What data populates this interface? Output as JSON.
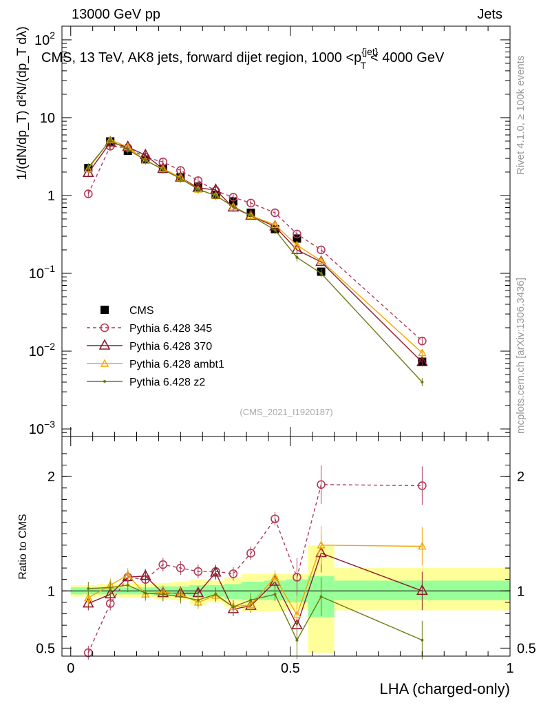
{
  "header": {
    "left": "13000 GeV pp",
    "right": "Jets"
  },
  "side_labels": {
    "rivet": "Rivet 4.1.0, ≥ 100k events",
    "mcplots": "mcplots.cern.ch [arXiv:1306.3436]"
  },
  "watermark": "(CMS_2021_I1920187)",
  "colors": {
    "cms": "#000000",
    "p345": "#b03a5a",
    "p370": "#8b1a2b",
    "ambt1": "#f5a500",
    "z2": "#6b7a10",
    "band_inner": "#99ff99",
    "band_outer": "#ffff99"
  },
  "chart_data": [
    {
      "type": "scatter",
      "title": "CMS, 13 TeV, AK8 jets, forward dijet region, 1000 <p_T^{jet}< 4000 GeV",
      "ylabel": "1/(dN/dp_T) d²N/(dp_T dλ)",
      "yscale": "log",
      "ylim": [
        0.0008,
        150
      ],
      "xlim": [
        -0.02,
        1.0
      ],
      "yticks": [
        {
          "v": 0.001,
          "label": "10^-3"
        },
        {
          "v": 0.01,
          "label": "10^-2"
        },
        {
          "v": 0.1,
          "label": "10^-1"
        },
        {
          "v": 1,
          "label": "1"
        },
        {
          "v": 10,
          "label": "10"
        },
        {
          "v": 100,
          "label": "10^2"
        }
      ],
      "x": [
        0.04,
        0.09,
        0.13,
        0.17,
        0.21,
        0.25,
        0.29,
        0.33,
        0.37,
        0.41,
        0.465,
        0.515,
        0.57,
        0.8
      ],
      "series": [
        {
          "name": "CMS",
          "values": [
            2.25,
            4.95,
            3.75,
            2.9,
            2.2,
            1.72,
            1.3,
            1.02,
            0.84,
            0.6,
            0.37,
            0.28,
            0.105,
            0.0073
          ]
        },
        {
          "name": "Pythia 6.428 345",
          "values": [
            1.05,
            4.3,
            4.1,
            3.1,
            2.7,
            2.1,
            1.55,
            1.15,
            0.95,
            0.8,
            0.6,
            0.32,
            0.2,
            0.0135
          ]
        },
        {
          "name": "Pythia 6.428 370",
          "values": [
            1.95,
            4.8,
            4.2,
            3.3,
            2.2,
            1.7,
            1.25,
            1.18,
            0.7,
            0.55,
            0.4,
            0.2,
            0.14,
            0.0072
          ]
        },
        {
          "name": "Pythia 6.428 ambt1",
          "values": [
            2.2,
            5.2,
            4.2,
            2.8,
            2.2,
            1.7,
            1.2,
            1.0,
            0.72,
            0.55,
            0.42,
            0.23,
            0.145,
            0.0095
          ]
        },
        {
          "name": "Pythia 6.428 z2",
          "values": [
            2.3,
            5.1,
            3.9,
            2.85,
            2.15,
            1.65,
            1.2,
            1.0,
            0.72,
            0.55,
            0.36,
            0.16,
            0.1,
            0.004
          ]
        }
      ]
    },
    {
      "type": "line",
      "ylabel": "Ratio to CMS",
      "xlabel": "LHA (charged-only)",
      "ylim": [
        0.43,
        2.35
      ],
      "xlim": [
        -0.02,
        1.0
      ],
      "xticks": [
        {
          "v": 0,
          "label": "0"
        },
        {
          "v": 0.5,
          "label": "0.5"
        },
        {
          "v": 1,
          "label": "1"
        }
      ],
      "yticks": [
        {
          "v": 0.5,
          "label": "0.5"
        },
        {
          "v": 1,
          "label": "1"
        },
        {
          "v": 2,
          "label": "2"
        }
      ],
      "x": [
        0.04,
        0.09,
        0.13,
        0.17,
        0.21,
        0.25,
        0.29,
        0.33,
        0.37,
        0.41,
        0.465,
        0.515,
        0.57,
        0.8
      ],
      "series": [
        {
          "name": "Pythia 6.428 345",
          "values": [
            0.46,
            0.89,
            1.12,
            1.1,
            1.23,
            1.2,
            1.17,
            1.17,
            1.15,
            1.33,
            1.63,
            1.12,
            1.93,
            1.92
          ]
        },
        {
          "name": "Pythia 6.428 370",
          "values": [
            0.89,
            0.97,
            1.12,
            1.13,
            0.98,
            0.98,
            0.98,
            1.16,
            0.84,
            0.87,
            1.08,
            0.7,
            1.33,
            1.0
          ]
        },
        {
          "name": "Pythia 6.428 ambt1",
          "values": [
            0.94,
            1.05,
            1.14,
            0.97,
            0.99,
            0.97,
            0.9,
            0.96,
            0.86,
            0.88,
            1.12,
            0.79,
            1.4,
            1.39
          ]
        },
        {
          "name": "Pythia 6.428 z2",
          "values": [
            1.02,
            1.03,
            1.05,
            0.98,
            0.97,
            0.95,
            0.92,
            0.97,
            0.86,
            0.92,
            0.97,
            0.57,
            0.95,
            0.57
          ]
        }
      ],
      "bands": [
        {
          "x0": 0.0,
          "x1": 0.06,
          "inner": [
            0.97,
            1.03
          ],
          "outer": [
            0.95,
            1.05
          ]
        },
        {
          "x0": 0.06,
          "x1": 0.11,
          "inner": [
            0.97,
            1.03
          ],
          "outer": [
            0.95,
            1.06
          ]
        },
        {
          "x0": 0.11,
          "x1": 0.15,
          "inner": [
            0.97,
            1.03
          ],
          "outer": [
            0.94,
            1.07
          ]
        },
        {
          "x0": 0.15,
          "x1": 0.19,
          "inner": [
            0.97,
            1.03
          ],
          "outer": [
            0.94,
            1.06
          ]
        },
        {
          "x0": 0.19,
          "x1": 0.23,
          "inner": [
            0.96,
            1.04
          ],
          "outer": [
            0.93,
            1.07
          ]
        },
        {
          "x0": 0.23,
          "x1": 0.27,
          "inner": [
            0.96,
            1.04
          ],
          "outer": [
            0.92,
            1.08
          ]
        },
        {
          "x0": 0.27,
          "x1": 0.31,
          "inner": [
            0.95,
            1.05
          ],
          "outer": [
            0.88,
            1.1
          ]
        },
        {
          "x0": 0.31,
          "x1": 0.35,
          "inner": [
            0.95,
            1.05
          ],
          "outer": [
            0.9,
            1.09
          ]
        },
        {
          "x0": 0.35,
          "x1": 0.39,
          "inner": [
            0.93,
            1.06
          ],
          "outer": [
            0.86,
            1.12
          ]
        },
        {
          "x0": 0.39,
          "x1": 0.44,
          "inner": [
            0.92,
            1.08
          ],
          "outer": [
            0.82,
            1.15
          ]
        },
        {
          "x0": 0.44,
          "x1": 0.49,
          "inner": [
            0.92,
            1.09
          ],
          "outer": [
            0.82,
            1.15
          ]
        },
        {
          "x0": 0.49,
          "x1": 0.54,
          "inner": [
            0.9,
            1.1
          ],
          "outer": [
            0.84,
            1.15
          ]
        },
        {
          "x0": 0.54,
          "x1": 0.6,
          "inner": [
            0.77,
            1.13
          ],
          "outer": [
            0.46,
            1.4
          ]
        },
        {
          "x0": 0.6,
          "x1": 1.0,
          "inner": [
            0.92,
            1.09
          ],
          "outer": [
            0.83,
            1.2
          ]
        }
      ]
    }
  ]
}
